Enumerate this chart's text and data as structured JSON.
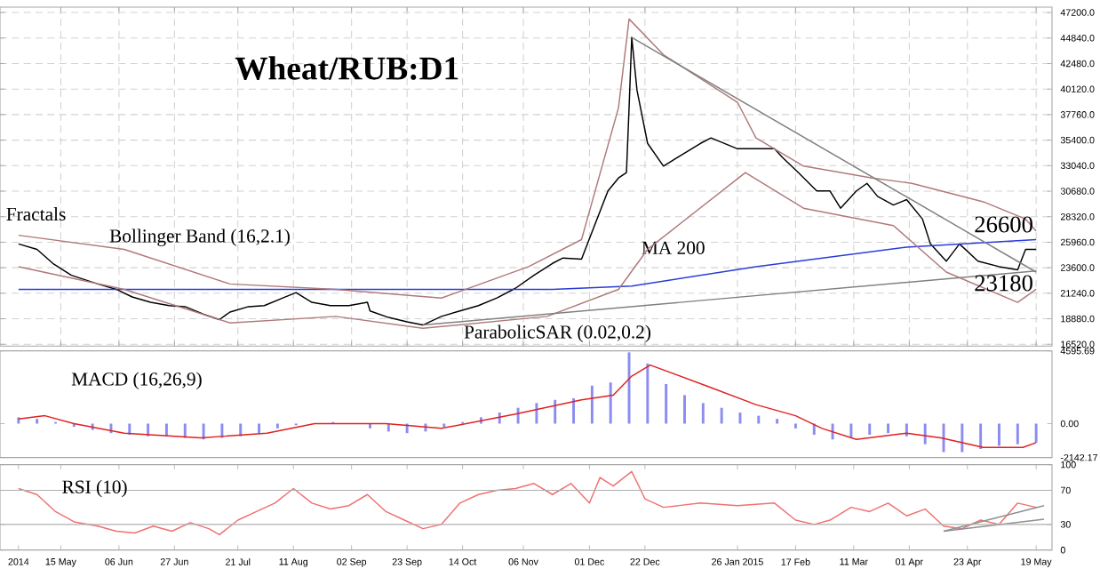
{
  "chart_data": [
    {
      "type": "line",
      "title": "Wheat/RUB:D1",
      "xlim": [
        "2014-04-22",
        "2015-05-25"
      ],
      "ylim": [
        16350,
        47700
      ],
      "grid": true,
      "tick_labels": "y",
      "xticks": [
        {
          "value": "2014-05-15",
          "label": null
        },
        {
          "value": "2014-06-06",
          "label": null
        },
        {
          "value": "2014-06-27",
          "label": null
        },
        {
          "value": "2014-07-21",
          "label": null
        },
        {
          "value": "2014-08-11",
          "label": null
        },
        {
          "value": "2014-09-02",
          "label": null
        },
        {
          "value": "2014-09-23",
          "label": null
        },
        {
          "value": "2014-10-14",
          "label": null
        },
        {
          "value": "2014-11-06",
          "label": null
        },
        {
          "value": "2014-12-01",
          "label": null
        },
        {
          "value": "2014-12-22",
          "label": null
        },
        {
          "value": "2015-01-26",
          "label": null
        },
        {
          "value": "2015-02-17",
          "label": null
        },
        {
          "value": "2015-03-11",
          "label": null
        },
        {
          "value": "2015-04-01",
          "label": null
        },
        {
          "value": "2015-04-23",
          "label": null
        },
        {
          "value": "2015-05-19",
          "label": null
        }
      ],
      "yticks": [
        {
          "value": 16520,
          "label": "16520.0"
        },
        {
          "value": 18880,
          "label": "18880.0"
        },
        {
          "value": 21240,
          "label": "21240.0"
        },
        {
          "value": 23600,
          "label": "23600.0"
        },
        {
          "value": 25960,
          "label": "25960.0"
        },
        {
          "value": 28320,
          "label": "28320.0"
        },
        {
          "value": 30680,
          "label": "30680.0"
        },
        {
          "value": 33040,
          "label": "33040.0"
        },
        {
          "value": 35400,
          "label": "35400.0"
        },
        {
          "value": 37760,
          "label": "37760.0"
        },
        {
          "value": 40120,
          "label": "40120.0"
        },
        {
          "value": 42480,
          "label": "42480.0"
        },
        {
          "value": 44840,
          "label": "44840.0"
        },
        {
          "value": 47200,
          "label": "47200.0"
        }
      ],
      "series": [
        {
          "color": "#000000",
          "x": [
            "2014-04-29",
            "2014-05-06",
            "2014-05-12",
            "2014-05-19",
            "2014-05-29",
            "2014-06-05",
            "2014-06-11",
            "2014-06-18",
            "2014-06-25",
            "2014-07-01",
            "2014-07-08",
            "2014-07-14",
            "2014-07-18",
            "2014-07-25",
            "2014-07-31",
            "2014-08-07",
            "2014-08-12",
            "2014-08-18",
            "2014-08-25",
            "2014-09-01",
            "2014-09-08",
            "2014-09-09",
            "2014-09-16",
            "2014-09-23",
            "2014-09-29",
            "2014-10-06",
            "2014-10-13",
            "2014-10-20",
            "2014-10-27",
            "2014-11-03",
            "2014-11-10",
            "2014-11-17",
            "2014-11-21",
            "2014-11-28",
            "2014-12-08",
            "2014-12-12",
            "2014-12-15",
            "2014-12-16",
            "2014-12-17",
            "2014-12-19",
            "2014-12-23",
            "2014-12-29",
            "2015-01-12",
            "2015-01-16",
            "2015-01-26",
            "2015-02-02",
            "2015-02-09",
            "2015-02-12",
            "2015-02-18",
            "2015-02-25",
            "2015-03-02",
            "2015-03-06",
            "2015-03-12",
            "2015-03-16",
            "2015-03-20",
            "2015-03-26",
            "2015-03-31",
            "2015-04-06",
            "2015-04-09",
            "2015-04-15",
            "2015-04-20",
            "2015-04-27",
            "2015-05-05",
            "2015-05-12",
            "2015-05-15",
            "2015-05-19"
          ],
          "values": [
            25800,
            25300,
            24000,
            22900,
            22100,
            21600,
            20900,
            20400,
            20100,
            20000,
            19300,
            18800,
            19500,
            20000,
            20100,
            20800,
            21300,
            20400,
            20100,
            20100,
            20400,
            19600,
            19000,
            18600,
            18300,
            19100,
            19600,
            20100,
            20800,
            21700,
            22900,
            24000,
            24500,
            24400,
            30700,
            31900,
            32400,
            38400,
            44900,
            40000,
            35100,
            33000,
            35100,
            35600,
            34600,
            34600,
            34600,
            33800,
            32400,
            30700,
            30700,
            29100,
            30700,
            31400,
            30200,
            29400,
            29900,
            28100,
            25800,
            24200,
            25800,
            24200,
            23700,
            23400,
            25300,
            25300
          ]
        },
        {
          "name": "MA 200",
          "color": "#2a3cd8",
          "x": [
            "2014-04-29",
            "2014-11-17",
            "2014-12-17",
            "2015-02-02",
            "2015-03-31",
            "2015-05-19"
          ],
          "values": [
            21600,
            21600,
            21900,
            23700,
            25500,
            26200
          ]
        },
        {
          "name": "Bollinger Band (16,2.1)",
          "color": "#b07a7a",
          "x": [
            "2014-04-29",
            "2014-06-08",
            "2014-07-18",
            "2014-08-27",
            "2014-10-06",
            "2014-11-08",
            "2014-11-28",
            "2014-12-12",
            "2014-12-16",
            "2014-12-29",
            "2015-01-26",
            "2015-02-02",
            "2015-02-20",
            "2015-03-18",
            "2015-04-02",
            "2015-04-29",
            "2015-05-15",
            "2015-05-19"
          ],
          "values": [
            26600,
            25300,
            22100,
            21600,
            20800,
            23700,
            26200,
            38400,
            46600,
            43300,
            38900,
            35600,
            33000,
            31900,
            31400,
            29700,
            28100,
            27000
          ]
        },
        {
          "color": "#b07a7a",
          "x": [
            "2014-04-29",
            "2014-06-08",
            "2014-07-18",
            "2014-08-27",
            "2014-09-29",
            "2014-11-15",
            "2014-12-12",
            "2014-12-23",
            "2015-01-29",
            "2015-02-20",
            "2015-03-26",
            "2015-04-15",
            "2015-05-12",
            "2015-05-19"
          ],
          "values": [
            23700,
            21600,
            18500,
            19100,
            18000,
            19100,
            21600,
            25300,
            32400,
            29100,
            27500,
            23200,
            20400,
            21600
          ]
        },
        {
          "color": "#808080",
          "x": [
            "2014-12-17",
            "2015-05-19"
          ],
          "values": [
            44900,
            23200
          ]
        },
        {
          "color": "#808080",
          "x": [
            "2014-09-29",
            "2015-05-19"
          ],
          "values": [
            18300,
            23300
          ]
        }
      ],
      "annotations": [
        "Fractals",
        "ParabolicSAR (0.02,0.2)",
        {
          "text": "26600",
          "x": "2015-05-19",
          "y": 26600
        },
        {
          "text": "23180",
          "x": "2015-05-19",
          "y": 23180
        }
      ]
    },
    {
      "type": "bar",
      "title": "MACD (16,26,9)",
      "xlim": [
        "2014-04-22",
        "2015-05-25"
      ],
      "ylim": [
        -2142.17,
        4595.69
      ],
      "tick_labels": "y",
      "yticks": [
        {
          "value": -2142.17,
          "label": "-2142.17"
        },
        {
          "value": 0,
          "label": "0.00"
        },
        {
          "value": 4595.69,
          "label": "4595.69"
        }
      ],
      "series": [
        {
          "color": "#8c8cf0",
          "x": [
            "2014-04-29",
            "2014-05-06",
            "2014-05-13",
            "2014-05-20",
            "2014-05-27",
            "2014-06-03",
            "2014-06-10",
            "2014-06-17",
            "2014-06-24",
            "2014-07-01",
            "2014-07-08",
            "2014-07-15",
            "2014-07-22",
            "2014-07-29",
            "2014-08-05",
            "2014-08-12",
            "2014-08-19",
            "2014-08-26",
            "2014-09-02",
            "2014-09-09",
            "2014-09-16",
            "2014-09-23",
            "2014-09-30",
            "2014-10-07",
            "2014-10-14",
            "2014-10-21",
            "2014-10-28",
            "2014-11-04",
            "2014-11-11",
            "2014-11-18",
            "2014-11-25",
            "2014-12-02",
            "2014-12-09",
            "2014-12-16",
            "2014-12-23",
            "2014-12-30",
            "2015-01-06",
            "2015-01-13",
            "2015-01-20",
            "2015-01-27",
            "2015-02-03",
            "2015-02-10",
            "2015-02-17",
            "2015-02-24",
            "2015-03-03",
            "2015-03-10",
            "2015-03-17",
            "2015-03-24",
            "2015-03-31",
            "2015-04-07",
            "2015-04-14",
            "2015-04-21",
            "2015-04-28",
            "2015-05-05",
            "2015-05-12",
            "2015-05-19"
          ],
          "values": [
            400,
            300,
            100,
            -200,
            -400,
            -600,
            -700,
            -800,
            -800,
            -900,
            -1000,
            -900,
            -800,
            -600,
            -300,
            -100,
            0,
            100,
            null,
            -300,
            -500,
            -600,
            -500,
            -200,
            100,
            400,
            700,
            1000,
            1300,
            1500,
            1600,
            2400,
            2600,
            4500,
            3800,
            2500,
            1800,
            1300,
            1000,
            700,
            500,
            300,
            -300,
            -700,
            -1000,
            -900,
            -700,
            -600,
            -800,
            -1300,
            -1800,
            -1800,
            -1600,
            -1400,
            -1300,
            -1200
          ]
        },
        {
          "type": "line",
          "color": "#e02020",
          "x": [
            "2014-04-29",
            "2014-05-09",
            "2014-05-20",
            "2014-06-08",
            "2014-07-07",
            "2014-08-01",
            "2014-08-19",
            "2014-09-15",
            "2014-10-06",
            "2014-11-03",
            "2014-11-28",
            "2014-12-10",
            "2014-12-17",
            "2014-12-24",
            "2015-01-14",
            "2015-02-02",
            "2015-02-17",
            "2015-02-27",
            "2015-03-12",
            "2015-03-31",
            "2015-04-13",
            "2015-04-29",
            "2015-05-14",
            "2015-05-19"
          ],
          "values": [
            300,
            500,
            0,
            -600,
            -900,
            -600,
            0,
            0,
            -300,
            600,
            1500,
            1800,
            3000,
            3700,
            2400,
            1200,
            500,
            -300,
            -1000,
            -600,
            -900,
            -1500,
            -1500,
            -1200
          ]
        }
      ]
    },
    {
      "type": "line",
      "title": "RSI (10)",
      "xlim": [
        "2014-04-22",
        "2015-05-25"
      ],
      "ylim": [
        0,
        100
      ],
      "yticks": [
        0,
        30,
        70,
        100
      ],
      "xticks": [
        {
          "value": "2014-04-29",
          "label": "2014"
        },
        {
          "value": "2014-05-15",
          "label": "15 May"
        },
        {
          "value": "2014-06-06",
          "label": "06 Jun"
        },
        {
          "value": "2014-06-27",
          "label": "27 Jun"
        },
        {
          "value": "2014-07-21",
          "label": "21 Jul"
        },
        {
          "value": "2014-08-11",
          "label": "11 Aug"
        },
        {
          "value": "2014-09-02",
          "label": "02 Sep"
        },
        {
          "value": "2014-09-23",
          "label": "23 Sep"
        },
        {
          "value": "2014-10-14",
          "label": "14 Oct"
        },
        {
          "value": "2014-11-06",
          "label": "06 Nov"
        },
        {
          "value": "2014-12-01",
          "label": "01 Dec"
        },
        {
          "value": "2014-12-22",
          "label": "22 Dec"
        },
        {
          "value": "2015-01-26",
          "label": "26 Jan 2015"
        },
        {
          "value": "2015-02-17",
          "label": "17 Feb"
        },
        {
          "value": "2015-03-11",
          "label": "11 Mar"
        },
        {
          "value": "2015-04-01",
          "label": "01 Apr"
        },
        {
          "value": "2015-04-23",
          "label": "23 Apr"
        },
        {
          "value": "2015-05-19",
          "label": "19 May"
        }
      ],
      "ref_lines": [
        {
          "axis": "y",
          "value": 30,
          "color": "#b0b0b0"
        },
        {
          "axis": "y",
          "value": 70,
          "color": "#b0b0b0"
        }
      ],
      "series": [
        {
          "color": "#f07070",
          "x": [
            "2014-04-29",
            "2014-05-06",
            "2014-05-13",
            "2014-05-20",
            "2014-05-29",
            "2014-06-05",
            "2014-06-12",
            "2014-06-19",
            "2014-06-26",
            "2014-07-03",
            "2014-07-10",
            "2014-07-14",
            "2014-07-21",
            "2014-07-28",
            "2014-08-04",
            "2014-08-11",
            "2014-08-18",
            "2014-08-25",
            "2014-09-01",
            "2014-09-08",
            "2014-09-15",
            "2014-09-22",
            "2014-09-29",
            "2014-10-06",
            "2014-10-13",
            "2014-10-20",
            "2014-10-27",
            "2014-11-03",
            "2014-11-10",
            "2014-11-17",
            "2014-11-24",
            "2014-12-01",
            "2014-12-05",
            "2014-12-10",
            "2014-12-17",
            "2014-12-22",
            "2014-12-29",
            "2015-01-12",
            "2015-01-26",
            "2015-02-09",
            "2015-02-17",
            "2015-02-24",
            "2015-03-02",
            "2015-03-10",
            "2015-03-17",
            "2015-03-24",
            "2015-03-31",
            "2015-04-07",
            "2015-04-14",
            "2015-04-21",
            "2015-04-28",
            "2015-05-05",
            "2015-05-12",
            "2015-05-19"
          ],
          "values": [
            72,
            65,
            45,
            33,
            28,
            22,
            20,
            28,
            22,
            32,
            25,
            18,
            35,
            45,
            55,
            72,
            55,
            48,
            52,
            65,
            45,
            35,
            25,
            30,
            55,
            65,
            70,
            72,
            78,
            65,
            78,
            55,
            85,
            75,
            92,
            60,
            50,
            55,
            52,
            55,
            35,
            30,
            35,
            50,
            45,
            55,
            40,
            48,
            28,
            25,
            35,
            30,
            55,
            50
          ]
        },
        {
          "color": "#909090",
          "x": [
            "2015-04-14",
            "2015-05-22"
          ],
          "values": [
            22,
            52
          ]
        },
        {
          "color": "#909090",
          "x": [
            "2015-04-14",
            "2015-05-22"
          ],
          "values": [
            22,
            36
          ]
        }
      ]
    }
  ]
}
